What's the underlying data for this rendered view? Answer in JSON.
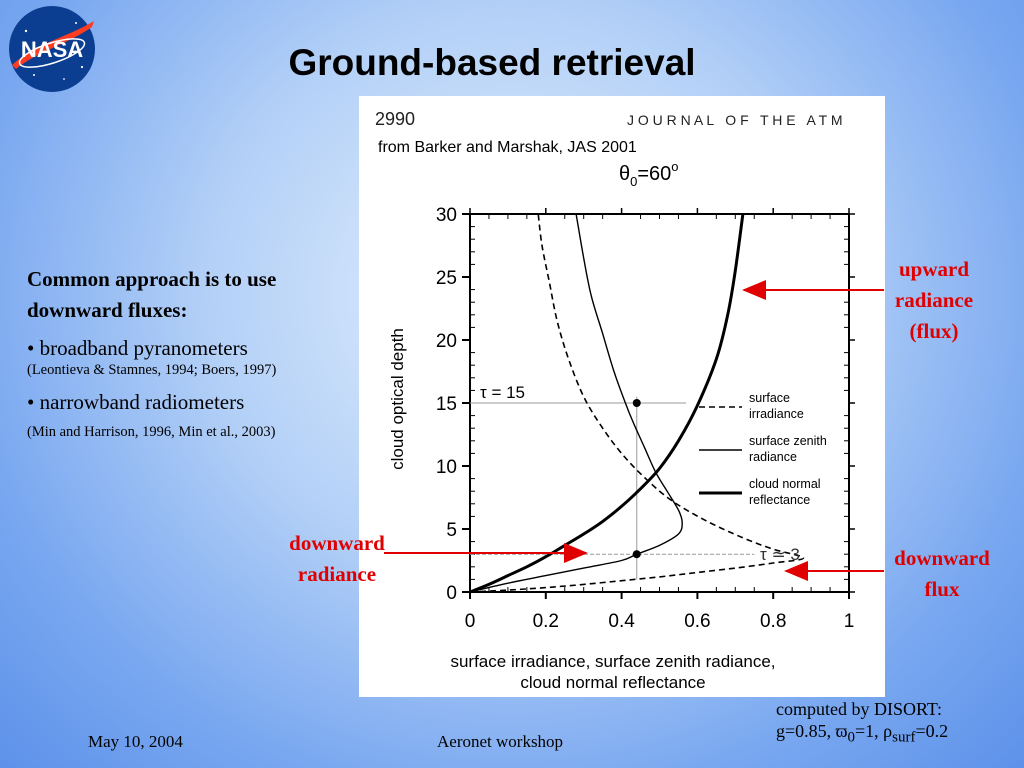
{
  "slide": {
    "title": "Ground-based retrieval",
    "logo_text": "NASA",
    "left_panel": {
      "lead_line1": "Common approach is to use",
      "lead_line2": "downward fluxes:",
      "bullets": [
        {
          "text": "• broadband pyranometers",
          "ref": "(Leontieva & Stamnes, 1994; Boers, 1997)"
        },
        {
          "text": "• narrowband radiometers",
          "ref": "(Min and Harrison, 1996, Min et al., 2003)"
        }
      ]
    },
    "annotations": {
      "upward": [
        "upward",
        "radiance",
        "(flux)"
      ],
      "downward_radiance": [
        "downward",
        "radiance"
      ],
      "downward_flux": [
        "downward",
        "flux"
      ]
    },
    "computed": {
      "line1": "computed by DISORT:",
      "line2_prefix": "g=0.85, ϖ",
      "sub0": "0",
      "line2_mid": "=1, ρ",
      "sub_surf": "surf",
      "line2_suffix": "=0.2"
    },
    "footer": {
      "date": "May 10, 2004",
      "event": "Aeronet workshop"
    }
  },
  "figure": {
    "page_number": "2990",
    "journal_header": "J O U R N A L   O F   T H E   A T M",
    "credit": "from Barker and Marshak, JAS 2001",
    "theta_label": "θ",
    "theta_sub": "0",
    "theta_eq": "=60",
    "theta_sup": "o",
    "tau15_label": "τ = 15",
    "tau3_label": "τ ≃ 3"
  },
  "colors": {
    "annotation_red": "#e00000",
    "arrow_red": "#e00000",
    "nasa_blue": "#0b3d91",
    "nasa_red": "#fc3d21"
  },
  "chart_data": {
    "type": "line",
    "xlabel_line1": "surface irradiance, surface zenith radiance,",
    "xlabel_line2": "cloud normal reflectance",
    "ylabel": "cloud optical depth",
    "xlim": [
      0,
      1
    ],
    "ylim": [
      0,
      30
    ],
    "xticks": [
      0,
      0.2,
      0.4,
      0.6,
      0.8,
      1
    ],
    "xtick_labels": [
      "0",
      "0.2",
      "0.4",
      "0.6",
      "0.8",
      "1"
    ],
    "yticks": [
      0,
      5,
      10,
      15,
      20,
      25,
      30
    ],
    "ytick_labels": [
      "0",
      "5",
      "10",
      "15",
      "20",
      "25",
      "30"
    ],
    "legend_position": "middle-right",
    "series": [
      {
        "name_lines": [
          "surface",
          "irradiance"
        ],
        "style": "dashed",
        "points": [
          [
            0.0,
            0
          ],
          [
            0.1,
            0.15
          ],
          [
            0.2,
            0.35
          ],
          [
            0.3,
            0.6
          ],
          [
            0.4,
            0.9
          ],
          [
            0.5,
            1.2
          ],
          [
            0.6,
            1.55
          ],
          [
            0.7,
            1.9
          ],
          [
            0.8,
            2.3
          ],
          [
            0.88,
            2.7
          ],
          [
            0.8,
            3.4
          ],
          [
            0.72,
            4.3
          ],
          [
            0.62,
            5.7
          ],
          [
            0.53,
            7.3
          ],
          [
            0.46,
            9.1
          ],
          [
            0.4,
            11.0
          ],
          [
            0.35,
            13.0
          ],
          [
            0.3,
            15.5
          ],
          [
            0.26,
            18.5
          ],
          [
            0.23,
            21.5
          ],
          [
            0.21,
            24.5
          ],
          [
            0.19,
            27.5
          ],
          [
            0.18,
            30
          ]
        ]
      },
      {
        "name_lines": [
          "surface zenith",
          "radiance"
        ],
        "style": "thin",
        "points": [
          [
            0.0,
            0
          ],
          [
            0.1,
            0.7
          ],
          [
            0.2,
            1.3
          ],
          [
            0.3,
            1.9
          ],
          [
            0.4,
            2.5
          ],
          [
            0.44,
            3.0
          ],
          [
            0.5,
            3.7
          ],
          [
            0.55,
            4.6
          ],
          [
            0.56,
            5.5
          ],
          [
            0.55,
            6.5
          ],
          [
            0.52,
            8.0
          ],
          [
            0.49,
            9.5
          ],
          [
            0.46,
            11.5
          ],
          [
            0.43,
            13.5
          ],
          [
            0.41,
            15.0
          ],
          [
            0.38,
            17.5
          ],
          [
            0.35,
            20.5
          ],
          [
            0.32,
            23.5
          ],
          [
            0.3,
            26.5
          ],
          [
            0.28,
            30
          ]
        ]
      },
      {
        "name_lines": [
          "cloud normal",
          "reflectance"
        ],
        "style": "thick",
        "points": [
          [
            0.0,
            0
          ],
          [
            0.05,
            0.6
          ],
          [
            0.1,
            1.3
          ],
          [
            0.15,
            2.0
          ],
          [
            0.2,
            2.8
          ],
          [
            0.25,
            3.7
          ],
          [
            0.3,
            4.6
          ],
          [
            0.35,
            5.6
          ],
          [
            0.4,
            6.8
          ],
          [
            0.45,
            8.2
          ],
          [
            0.5,
            9.8
          ],
          [
            0.55,
            12.0
          ],
          [
            0.6,
            14.8
          ],
          [
            0.65,
            18.5
          ],
          [
            0.68,
            22.0
          ],
          [
            0.7,
            25.5
          ],
          [
            0.72,
            30
          ]
        ]
      }
    ],
    "markers": [
      [
        0.44,
        15
      ],
      [
        0.44,
        3
      ]
    ],
    "guides": {
      "tau15": 15,
      "tau3": 3,
      "x_marker": 0.44
    }
  }
}
